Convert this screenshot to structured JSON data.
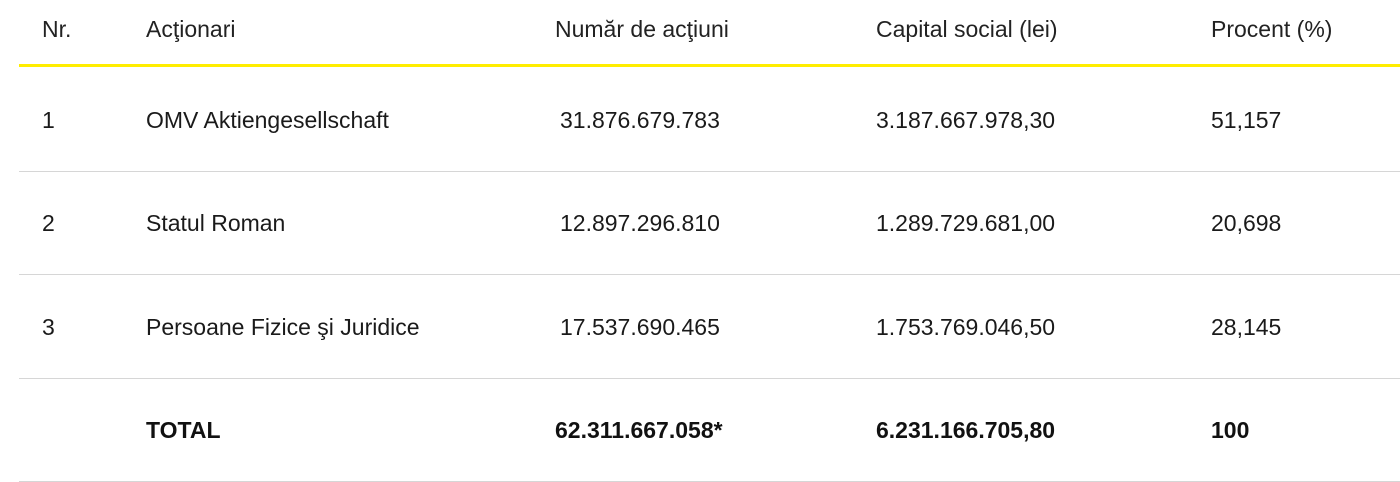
{
  "table": {
    "headers": {
      "nr": "Nr.",
      "shareholders": "Acţionari",
      "shares": "Număr de acţiuni",
      "capital": "Capital  social (lei)",
      "percent": "Procent (%)"
    },
    "rows": [
      {
        "nr": "1",
        "shareholder": "OMV Aktiengesellschaft",
        "shares": "31.876.679.783",
        "capital": "3.187.667.978,30",
        "percent": "51,157"
      },
      {
        "nr": "2",
        "shareholder": "Statul Roman",
        "shares": "12.897.296.810",
        "capital": "1.289.729.681,00",
        "percent": "20,698"
      },
      {
        "nr": "3",
        "shareholder": "Persoane Fizice şi Juridice",
        "shares": "17.537.690.465",
        "capital": "1.753.769.046,50",
        "percent": "28,145"
      }
    ],
    "total": {
      "label": "TOTAL",
      "shares": "62.311.667.058*",
      "capital": "6.231.166.705,80",
      "percent": "100"
    }
  },
  "colors": {
    "header_line": "#ffed00",
    "divider": "#d6d6d6",
    "text": "#1a1a1a"
  }
}
